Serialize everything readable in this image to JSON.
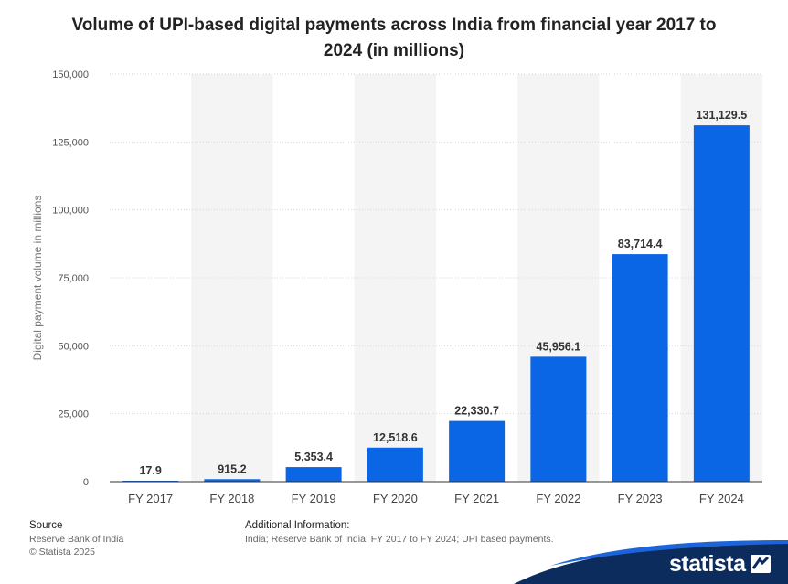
{
  "title": "Volume of UPI-based digital payments across India from financial year 2017 to 2024 (in millions)",
  "chart_data": {
    "type": "bar",
    "title": "Volume of UPI-based digital payments across India from financial year 2017 to 2024 (in millions)",
    "xlabel": "",
    "ylabel": "Digital payment volume in millions",
    "categories": [
      "FY 2017",
      "FY 2018",
      "FY 2019",
      "FY 2020",
      "FY 2021",
      "FY 2022",
      "FY 2023",
      "FY 2024"
    ],
    "values": [
      17.9,
      915.2,
      5353.4,
      12518.6,
      22330.7,
      45956.1,
      83714.4,
      131129.5
    ],
    "value_labels": [
      "17.9",
      "915.2",
      "5,353.4",
      "12,518.6",
      "22,330.7",
      "45,956.1",
      "83,714.4",
      "131,129.5"
    ],
    "ylim": [
      0,
      150000
    ],
    "yticks": [
      0,
      25000,
      50000,
      75000,
      100000,
      125000,
      150000
    ],
    "ytick_labels": [
      "0",
      "25,000",
      "50,000",
      "75,000",
      "100,000",
      "125,000",
      "150,000"
    ],
    "grid": true,
    "bar_color": "#0a66e4"
  },
  "footer": {
    "source_heading": "Source",
    "source_line1": "Reserve Bank of India",
    "source_line2": "© Statista 2025",
    "info_heading": "Additional Information:",
    "info_text": "India; Reserve Bank of India; FY 2017 to FY 2024; UPI based payments."
  },
  "brand": "statista"
}
